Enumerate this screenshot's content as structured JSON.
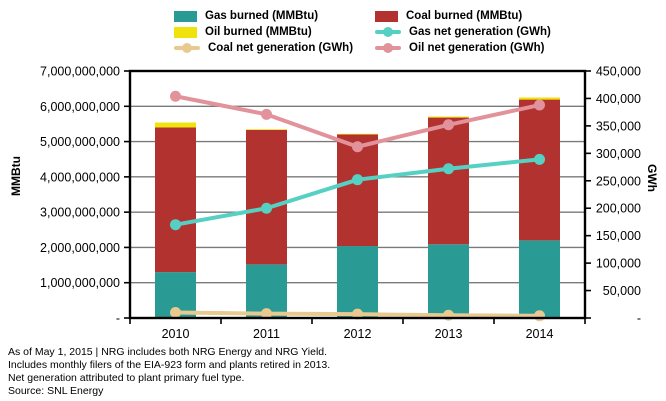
{
  "chart_data": {
    "type": "combo-stacked-bar-line",
    "categories": [
      "2010",
      "2011",
      "2012",
      "2013",
      "2014"
    ],
    "bar_series": [
      {
        "key": "gas-burned",
        "name": "Gas burned (MMBtu)",
        "color": "#2a9a94",
        "axis": "left",
        "values": [
          1300000000,
          1520000000,
          2040000000,
          2090000000,
          2200000000
        ]
      },
      {
        "key": "coal-burned",
        "name": "Coal burned (MMBtu)",
        "color": "#b23230",
        "axis": "left",
        "values": [
          4100000000,
          3810000000,
          3160000000,
          3590000000,
          3990000000
        ]
      },
      {
        "key": "oil-burned",
        "name": "Oil burned (MMBtu)",
        "color": "#f0e20b",
        "axis": "left",
        "values": [
          140000000,
          20000000,
          20000000,
          30000000,
          60000000
        ]
      }
    ],
    "line_series": [
      {
        "key": "coal-net-generation",
        "name": "Coal net generation (GWh)",
        "color": "#e8c98f",
        "axis": "right",
        "values": [
          10000,
          8000,
          7000,
          5000,
          4000
        ]
      },
      {
        "key": "gas-net-generation",
        "name": "Gas net generation (GWh)",
        "color": "#57d0c4",
        "axis": "right",
        "values": [
          170000,
          200000,
          252000,
          272000,
          289000
        ]
      },
      {
        "key": "oil-net-generation",
        "name": "Oil net generation (GWh)",
        "color": "#e2929b",
        "axis": "right",
        "values": [
          404000,
          371000,
          312000,
          352000,
          388000
        ]
      }
    ],
    "left_axis": {
      "label": "MMBtu",
      "min": 0,
      "max": 7000000000,
      "step": 1000000000,
      "zero_label": "-"
    },
    "right_axis": {
      "label": "GWh",
      "min": 0,
      "max": 450000,
      "step": 50000,
      "zero_label": "-"
    },
    "grid": true,
    "legend_position": "top",
    "colors": {
      "grid": "#7a7a7a",
      "axis": "#000000"
    }
  },
  "footer": {
    "lines": [
      "As of May 1, 2015  |  NRG includes both NRG Energy and NRG Yield.",
      "Includes monthly filers of the EIA-923 form and plants retired in 2013.",
      "Net generation attributed to plant primary fuel type.",
      "Source: SNL Energy"
    ]
  }
}
